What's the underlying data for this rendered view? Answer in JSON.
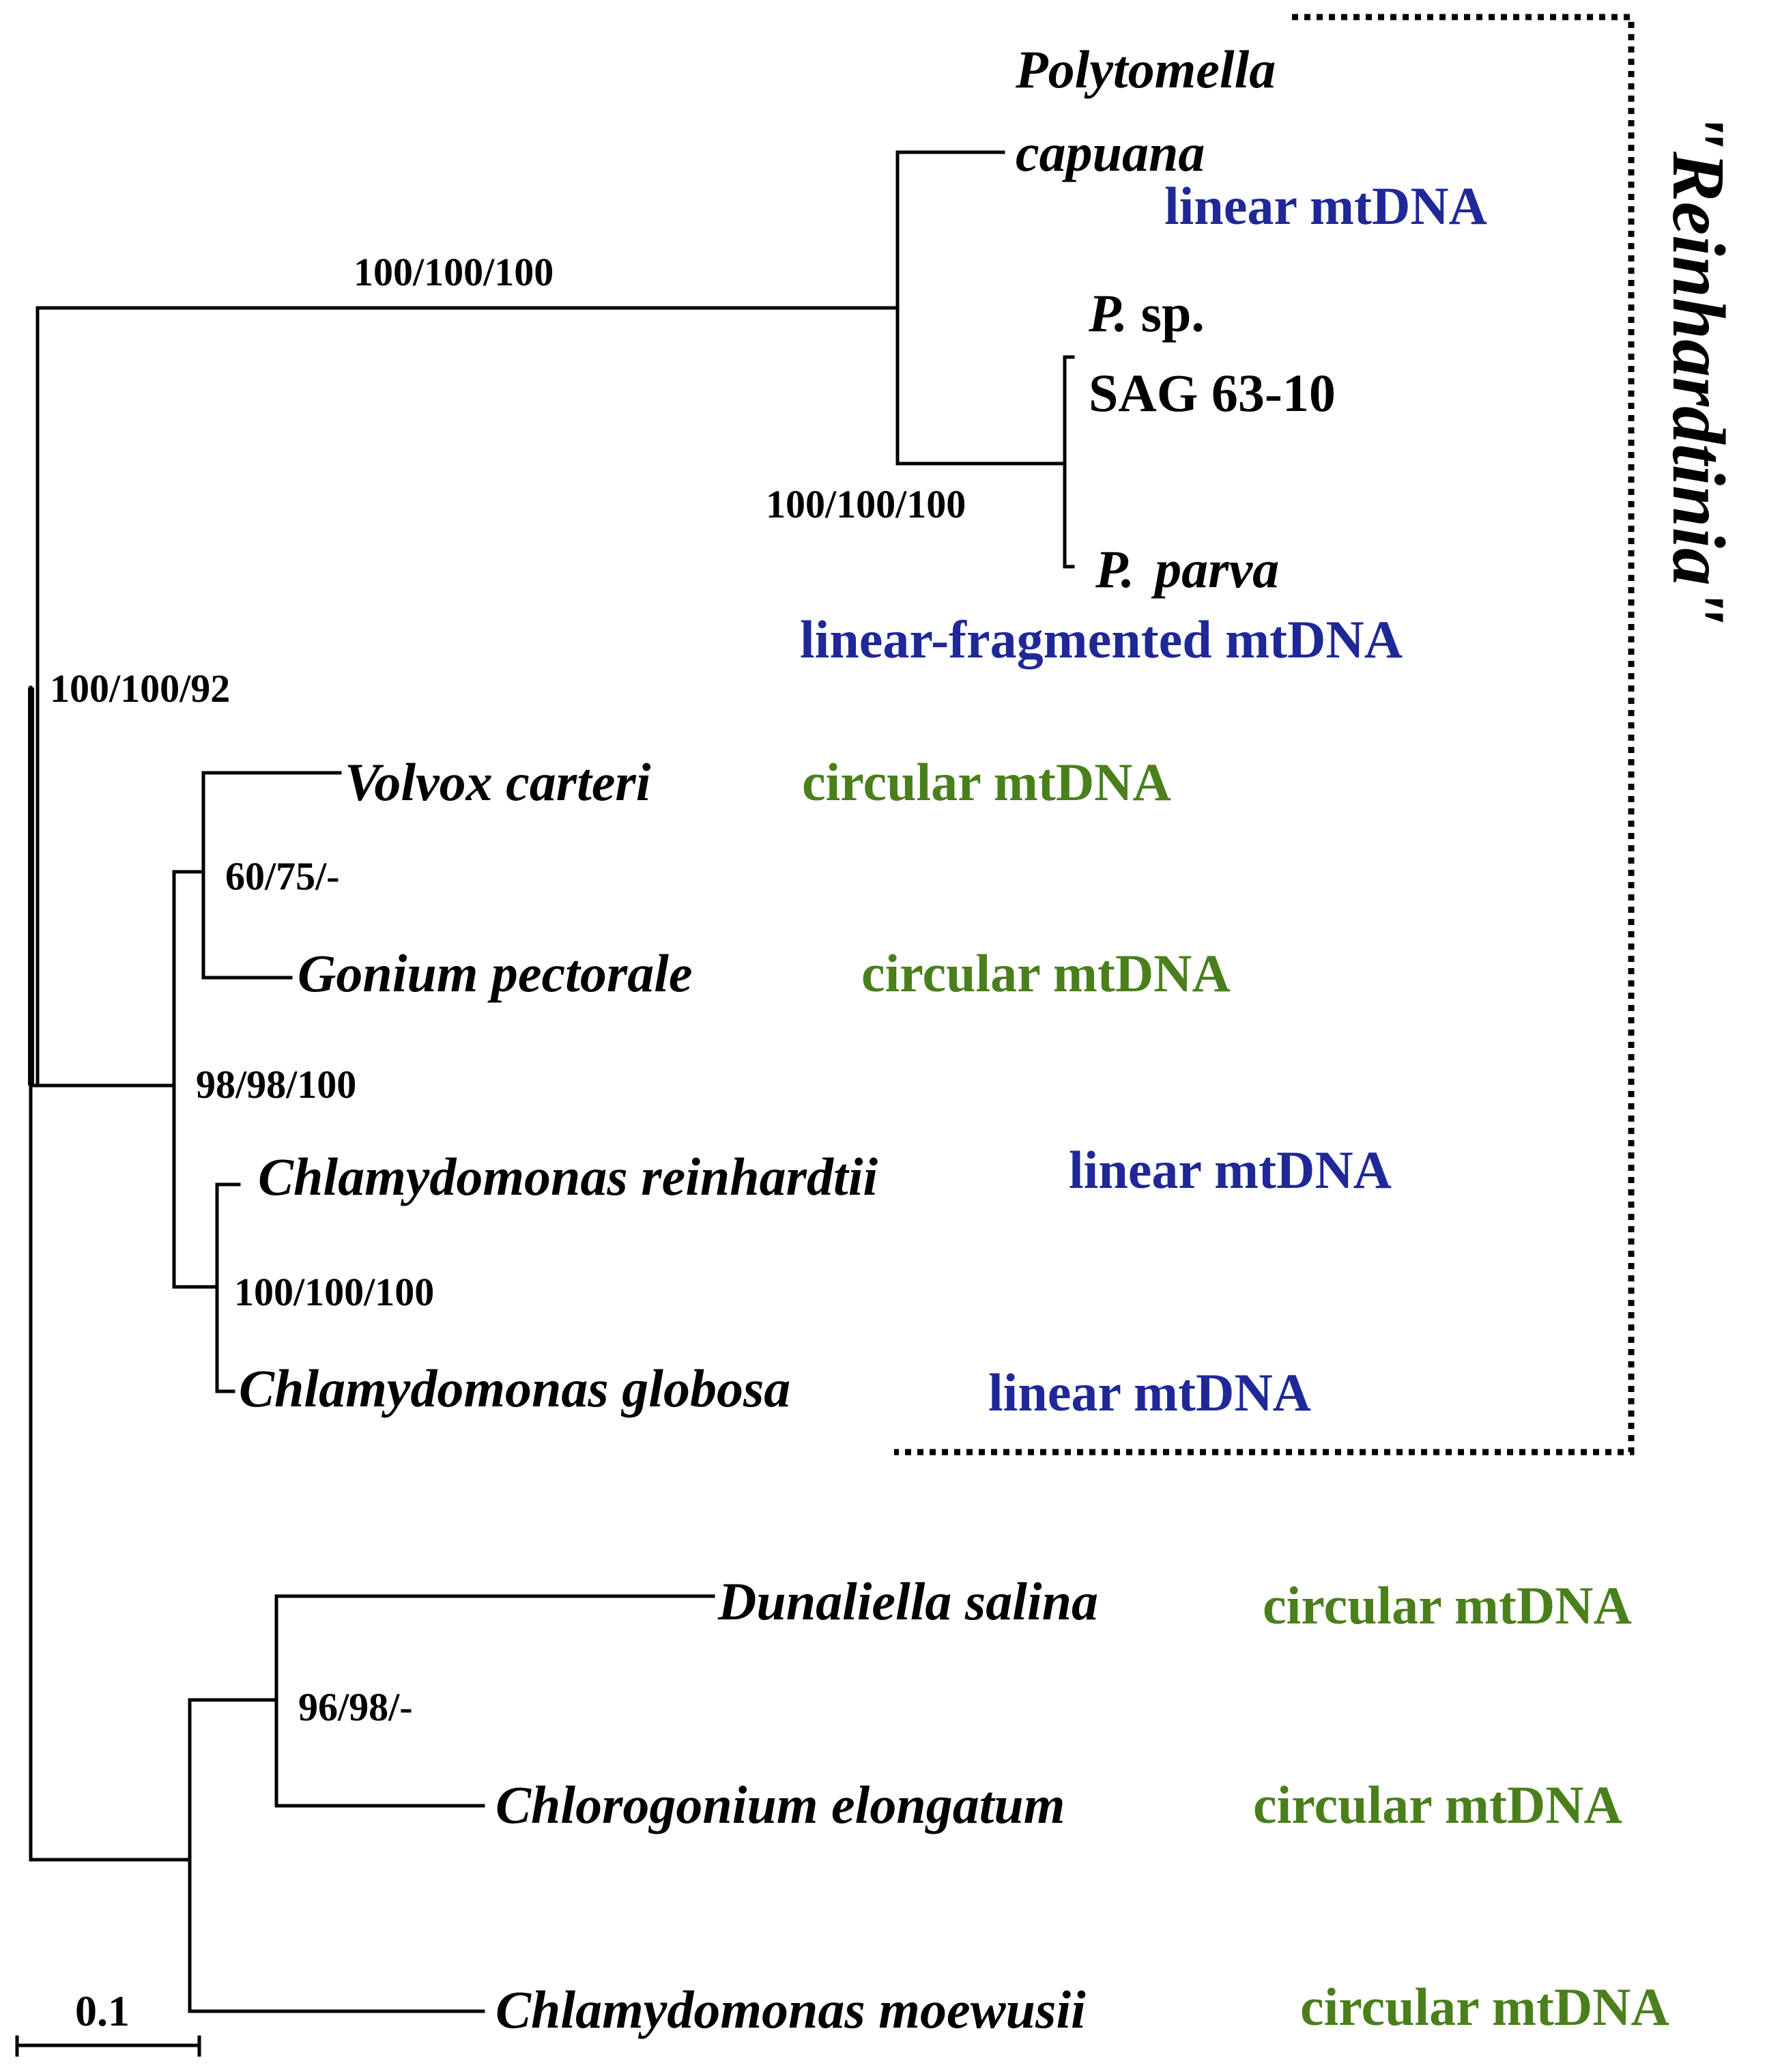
{
  "colors": {
    "linear": "#1f2896",
    "circular": "#4a7f1c",
    "text": "#000000"
  },
  "taxa": {
    "polytomella_line1": "Polytomella",
    "polytomella_line2": "capuana",
    "p_sp_genus": "P.",
    "p_sp_epithet": " sp.",
    "p_sp_strain": "SAG 63-10",
    "p_parva_genus": "P.",
    "p_parva_epithet": "parva",
    "volvox": "Volvox carteri",
    "gonium": "Gonium pectorale",
    "c_reinhardtii": "Chlamydomonas reinhardtii",
    "c_globosa": "Chlamydomonas globosa",
    "dunaliella": "Dunaliella salina",
    "chlorogonium": "Chlorogonium elongatum",
    "c_moewusii": "Chlamydomonas moewusii"
  },
  "mtdna": {
    "polytomella_capuana": "linear mtDNA",
    "polytomella_fragmented": "linear-fragmented mtDNA",
    "volvox": "circular mtDNA",
    "gonium": "circular mtDNA",
    "c_reinhardtii": "linear mtDNA",
    "c_globosa": "linear mtDNA",
    "dunaliella": "circular mtDNA",
    "chlorogonium": "circular mtDNA",
    "c_moewusii": "circular mtDNA"
  },
  "support": {
    "polytomella_stem": "100/100/100",
    "polytomella_inner": "100/100/100",
    "reinhardtinia": "100/100/92",
    "volvox_gonium": "60/75/-",
    "volvocine": "98/98/100",
    "chlamydomonas_pair": "100/100/100",
    "dunaliella_chlorogonium": "96/98/-"
  },
  "clade_label": "\"Reinhardtinia\"",
  "scale_bar": {
    "label": "0.1",
    "value": 0.1
  }
}
